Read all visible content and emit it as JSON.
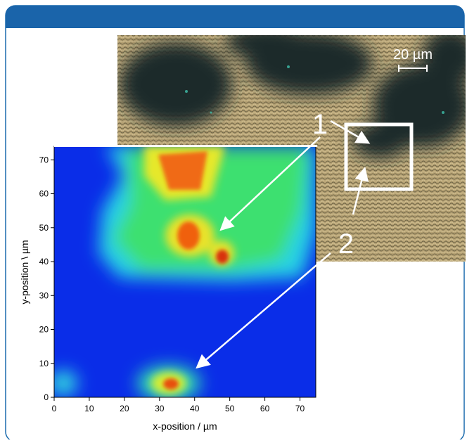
{
  "chart_data": {
    "type": "heatmap",
    "x_label": "x-position / µm",
    "y_label": "y-position \\ µm",
    "xlim": [
      0,
      74.5
    ],
    "ylim": [
      0,
      74
    ],
    "xticks": [
      0,
      10,
      20,
      30,
      40,
      50,
      60,
      70
    ],
    "yticks": [
      0,
      10,
      20,
      30,
      40,
      50,
      60,
      70
    ]
  },
  "annotations": {
    "labels": [
      "1",
      "2"
    ],
    "scale_bar": "20 µm"
  }
}
